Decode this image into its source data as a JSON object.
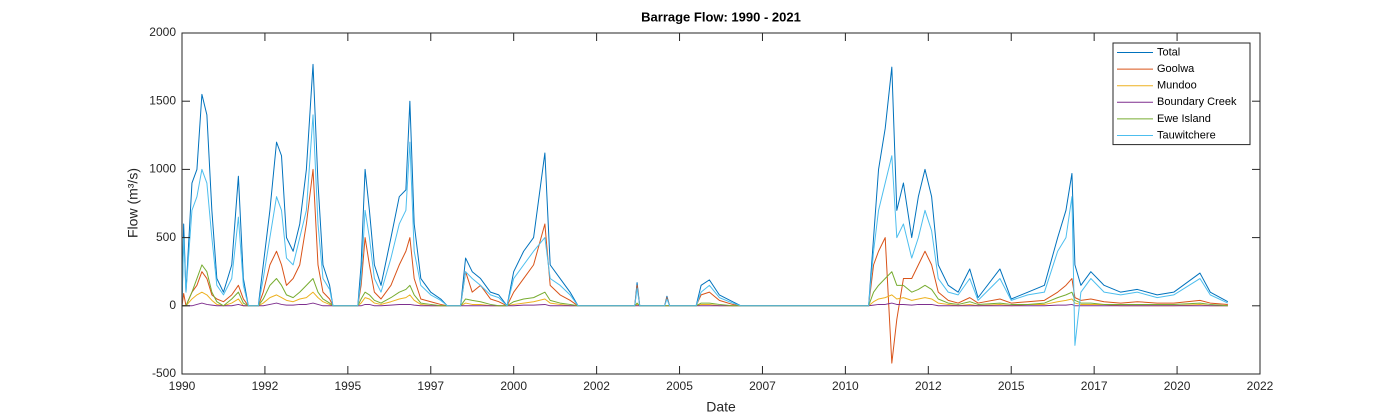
{
  "chart_data": {
    "type": "line",
    "title": "Barrage Flow: 1990 - 2021",
    "xlabel": "Date",
    "ylabel": "Flow (m³/s)",
    "xlim": [
      1990,
      2022.5
    ],
    "xticks": [
      1990,
      {
        "value": 1992.5,
        "label": "1992"
      },
      1995,
      {
        "value": 1997.5,
        "label": "1997"
      },
      2000,
      {
        "value": 2002.5,
        "label": "2002"
      },
      2005,
      {
        "value": 2007.5,
        "label": "2007"
      },
      2010,
      {
        "value": 2012.5,
        "label": "2012"
      },
      2015,
      {
        "value": 2017.5,
        "label": "2017"
      },
      2020,
      {
        "value": 2022.5,
        "label": "2022"
      }
    ],
    "ylim": [
      -500,
      2000
    ],
    "yticks": [
      -500,
      0,
      500,
      1000,
      1500,
      2000
    ],
    "legend": "northeast",
    "grid": false,
    "x": [
      1990.0,
      1990.05,
      1990.12,
      1990.3,
      1990.45,
      1990.6,
      1990.75,
      1990.9,
      1991.05,
      1991.25,
      1991.5,
      1991.7,
      1991.85,
      1992.0,
      1992.3,
      1992.45,
      1992.65,
      1992.85,
      1993.0,
      1993.15,
      1993.35,
      1993.55,
      1993.75,
      1993.95,
      1994.1,
      1994.25,
      1994.45,
      1994.55,
      1995.3,
      1995.4,
      1995.52,
      1995.65,
      1995.8,
      1996.0,
      1996.3,
      1996.55,
      1996.75,
      1996.87,
      1997.0,
      1997.2,
      1997.5,
      1997.8,
      1998.0,
      1998.4,
      1998.55,
      1998.75,
      1999.0,
      1999.3,
      1999.55,
      1999.8,
      2000.0,
      2000.3,
      2000.6,
      2000.94,
      2001.1,
      2001.4,
      2001.7,
      2001.94,
      2003.65,
      2003.72,
      2003.8,
      2004.55,
      2004.62,
      2004.7,
      2005.5,
      2005.65,
      2005.9,
      2006.2,
      2006.6,
      2006.85,
      2010.7,
      2010.85,
      2011.0,
      2011.2,
      2011.4,
      2011.55,
      2011.75,
      2012.0,
      2012.2,
      2012.4,
      2012.6,
      2012.8,
      2013.1,
      2013.4,
      2013.75,
      2014.0,
      2014.66,
      2015.0,
      2015.5,
      2016.0,
      2016.4,
      2016.65,
      2016.83,
      2016.92,
      2017.1,
      2017.4,
      2017.8,
      2018.3,
      2018.8,
      2019.4,
      2019.9,
      2020.69,
      2021.0,
      2021.53
    ],
    "series": [
      {
        "name": "Total",
        "color": "#0072BD",
        "values": [
          0,
          600,
          100,
          900,
          1000,
          1550,
          1400,
          700,
          200,
          100,
          300,
          950,
          200,
          0,
          0,
          300,
          700,
          1200,
          1100,
          500,
          400,
          600,
          1000,
          1770,
          900,
          300,
          150,
          0,
          0,
          300,
          1000,
          700,
          300,
          150,
          500,
          800,
          850,
          1500,
          600,
          200,
          100,
          50,
          0,
          0,
          350,
          250,
          200,
          100,
          80,
          0,
          250,
          400,
          500,
          1120,
          300,
          200,
          100,
          0,
          0,
          170,
          0,
          0,
          70,
          0,
          0,
          150,
          190,
          80,
          30,
          0,
          0,
          500,
          1000,
          1300,
          1750,
          700,
          900,
          500,
          800,
          1000,
          800,
          300,
          150,
          100,
          270,
          60,
          270,
          50,
          100,
          150,
          500,
          700,
          970,
          300,
          150,
          250,
          150,
          100,
          120,
          80,
          100,
          240,
          100,
          30
        ]
      },
      {
        "name": "Goolwa",
        "color": "#D95319",
        "values": [
          0,
          90,
          0,
          100,
          150,
          250,
          200,
          80,
          50,
          30,
          80,
          150,
          50,
          0,
          0,
          100,
          300,
          400,
          300,
          150,
          200,
          300,
          600,
          1000,
          300,
          100,
          50,
          0,
          0,
          150,
          500,
          300,
          100,
          50,
          150,
          300,
          400,
          500,
          200,
          50,
          30,
          10,
          0,
          0,
          250,
          100,
          150,
          50,
          30,
          0,
          100,
          200,
          300,
          600,
          150,
          80,
          40,
          0,
          0,
          150,
          0,
          0,
          60,
          0,
          0,
          80,
          100,
          40,
          10,
          0,
          0,
          300,
          400,
          500,
          -420,
          -100,
          200,
          200,
          300,
          400,
          300,
          100,
          40,
          20,
          60,
          20,
          50,
          20,
          30,
          40,
          100,
          150,
          200,
          60,
          40,
          50,
          30,
          20,
          30,
          20,
          20,
          40,
          20,
          10
        ]
      },
      {
        "name": "Mundoo",
        "color": "#EDB120",
        "values": [
          0,
          0,
          0,
          50,
          80,
          100,
          80,
          40,
          10,
          0,
          20,
          50,
          0,
          0,
          0,
          20,
          60,
          80,
          60,
          40,
          30,
          50,
          60,
          100,
          60,
          30,
          10,
          0,
          0,
          20,
          60,
          50,
          20,
          10,
          30,
          50,
          60,
          80,
          40,
          10,
          0,
          0,
          0,
          0,
          20,
          10,
          10,
          0,
          0,
          0,
          10,
          20,
          30,
          50,
          20,
          10,
          0,
          0,
          0,
          10,
          0,
          0,
          0,
          0,
          0,
          10,
          10,
          0,
          0,
          0,
          0,
          30,
          50,
          60,
          80,
          50,
          60,
          40,
          50,
          60,
          50,
          20,
          10,
          0,
          10,
          0,
          10,
          0,
          10,
          10,
          30,
          40,
          50,
          20,
          10,
          10,
          10,
          0,
          0,
          0,
          0,
          10,
          0,
          0
        ]
      },
      {
        "name": "Boundary Creek",
        "color": "#7E2F8E",
        "values": [
          0,
          0,
          0,
          0,
          10,
          20,
          10,
          5,
          0,
          0,
          0,
          10,
          0,
          0,
          0,
          0,
          10,
          20,
          10,
          5,
          5,
          10,
          10,
          20,
          10,
          0,
          0,
          0,
          0,
          0,
          10,
          10,
          0,
          0,
          5,
          10,
          10,
          10,
          5,
          0,
          0,
          0,
          0,
          0,
          0,
          0,
          0,
          0,
          0,
          0,
          0,
          5,
          5,
          10,
          0,
          0,
          0,
          0,
          0,
          0,
          0,
          0,
          0,
          0,
          0,
          0,
          0,
          0,
          0,
          0,
          0,
          5,
          10,
          10,
          20,
          10,
          10,
          5,
          10,
          10,
          10,
          0,
          0,
          0,
          0,
          0,
          0,
          0,
          0,
          0,
          5,
          5,
          10,
          0,
          0,
          0,
          0,
          0,
          0,
          0,
          0,
          0,
          0,
          0
        ]
      },
      {
        "name": "Ewe Island",
        "color": "#77AC30",
        "values": [
          0,
          0,
          0,
          100,
          200,
          300,
          250,
          100,
          30,
          0,
          50,
          100,
          20,
          0,
          0,
          50,
          150,
          200,
          150,
          80,
          60,
          100,
          150,
          200,
          100,
          50,
          20,
          0,
          0,
          50,
          100,
          80,
          40,
          20,
          60,
          100,
          120,
          150,
          80,
          20,
          10,
          0,
          0,
          0,
          50,
          40,
          30,
          10,
          0,
          0,
          30,
          50,
          60,
          100,
          40,
          20,
          10,
          0,
          0,
          20,
          0,
          0,
          0,
          0,
          0,
          20,
          20,
          10,
          0,
          0,
          0,
          100,
          150,
          200,
          250,
          150,
          150,
          100,
          120,
          150,
          120,
          50,
          20,
          10,
          30,
          10,
          20,
          10,
          10,
          20,
          60,
          80,
          100,
          40,
          20,
          20,
          10,
          10,
          10,
          10,
          10,
          20,
          10,
          0
        ]
      },
      {
        "name": "Tauwitchere",
        "color": "#4DBEEE",
        "values": [
          0,
          500,
          100,
          700,
          800,
          1000,
          900,
          500,
          150,
          80,
          200,
          650,
          150,
          0,
          0,
          200,
          500,
          800,
          700,
          350,
          300,
          500,
          700,
          1400,
          600,
          200,
          120,
          0,
          0,
          200,
          700,
          500,
          200,
          100,
          350,
          600,
          700,
          1200,
          400,
          150,
          80,
          40,
          0,
          0,
          250,
          200,
          150,
          80,
          60,
          0,
          200,
          300,
          400,
          500,
          200,
          150,
          80,
          0,
          0,
          130,
          0,
          0,
          50,
          0,
          0,
          100,
          150,
          60,
          20,
          0,
          0,
          400,
          700,
          900,
          1100,
          500,
          600,
          350,
          500,
          700,
          550,
          200,
          100,
          80,
          200,
          40,
          200,
          40,
          80,
          100,
          400,
          500,
          800,
          -290,
          100,
          200,
          100,
          80,
          100,
          60,
          80,
          200,
          80,
          20
        ]
      }
    ]
  }
}
